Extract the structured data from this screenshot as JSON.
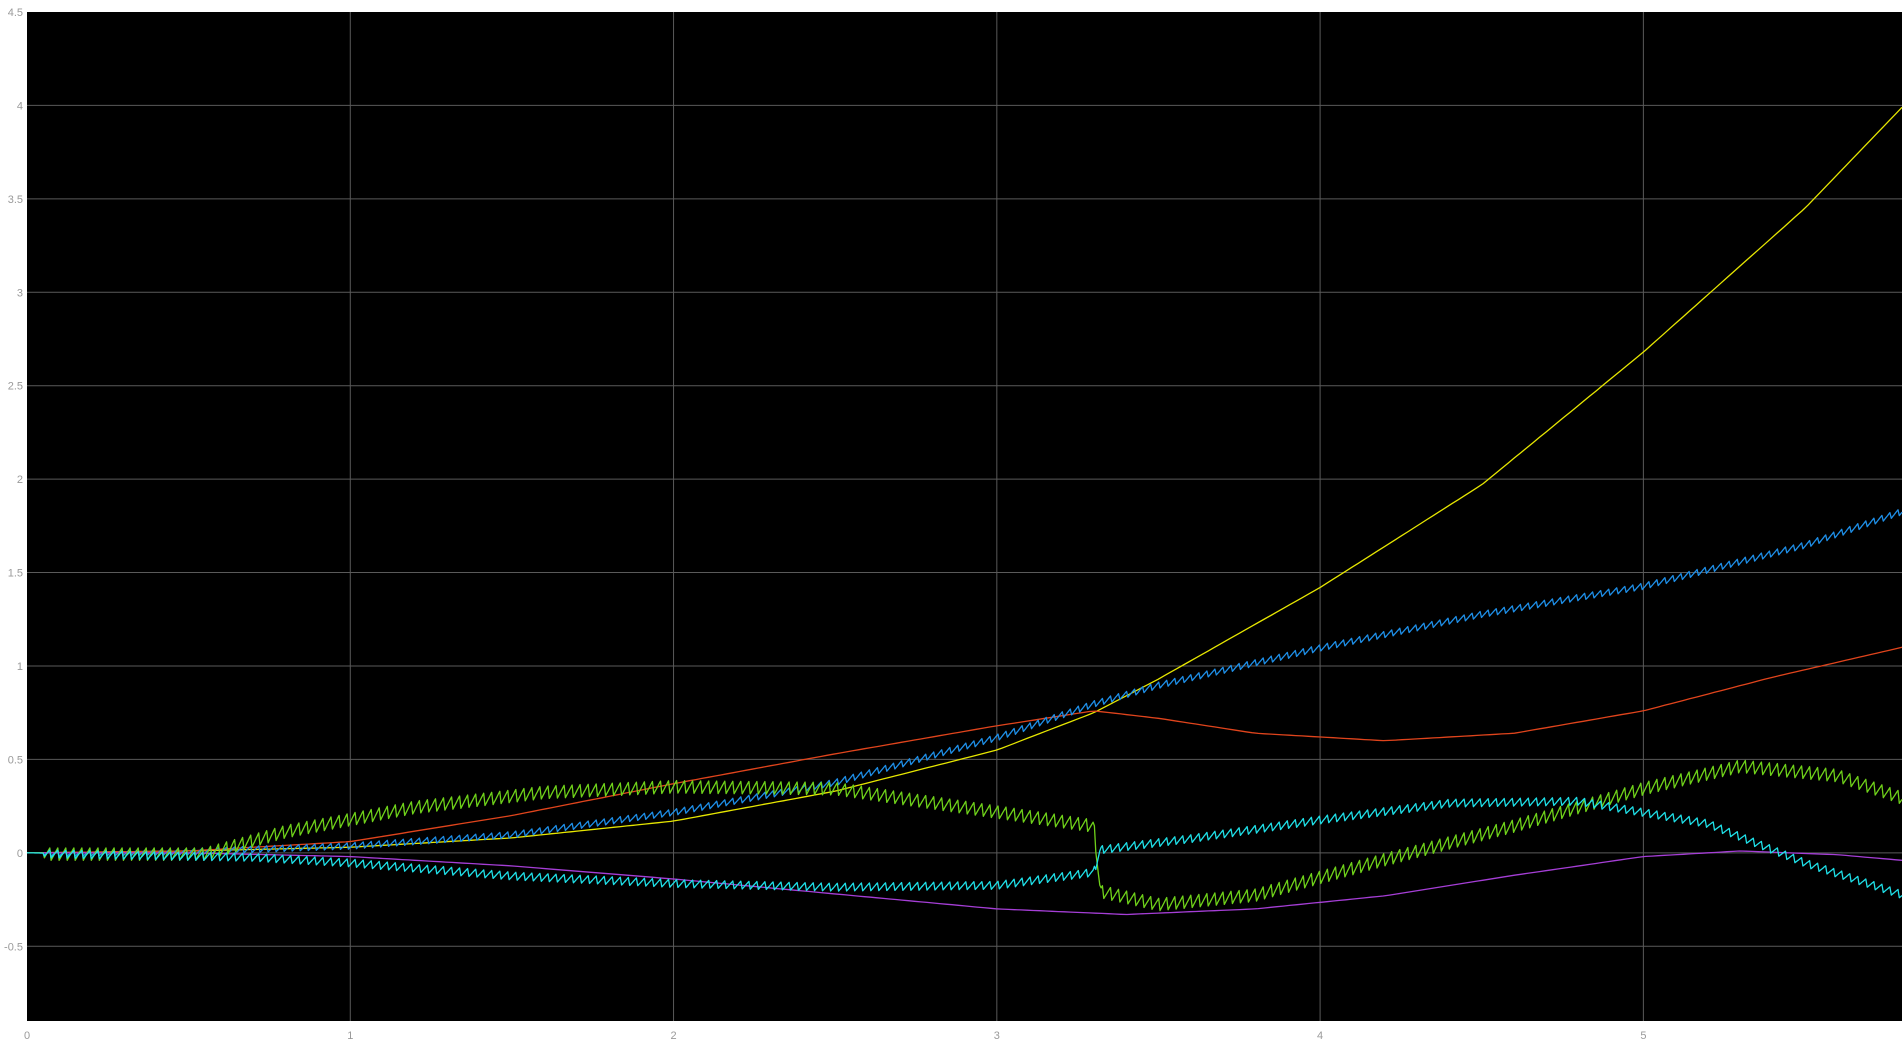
{
  "chart_data": {
    "type": "line",
    "title": "",
    "xlabel": "",
    "ylabel": "",
    "xlim": [
      0,
      5.8
    ],
    "ylim": [
      -0.9,
      4.5
    ],
    "grid": true,
    "legend": "none",
    "background": "#000000",
    "x_ticks": [
      "0",
      "1",
      "2",
      "3",
      "4",
      "5"
    ],
    "y_ticks": [
      "-0.5",
      "0",
      "0.5",
      "1",
      "1.5",
      "2",
      "2.5",
      "3",
      "3.5",
      "4",
      "4.5"
    ],
    "series": [
      {
        "color": "#e6e600",
        "noise": 0,
        "x": [
          0,
          0.5,
          1.0,
          1.5,
          2.0,
          2.5,
          3.0,
          3.3,
          3.5,
          4.0,
          4.5,
          5.0,
          5.5,
          5.8
        ],
        "y": [
          0,
          0.01,
          0.03,
          0.08,
          0.17,
          0.33,
          0.55,
          0.75,
          0.93,
          1.42,
          1.97,
          2.68,
          3.45,
          3.99
        ]
      },
      {
        "color": "#e0441c",
        "noise": 0,
        "x": [
          0,
          0.5,
          1.0,
          1.5,
          2.0,
          2.5,
          3.0,
          3.3,
          3.5,
          3.8,
          4.2,
          4.6,
          5.0,
          5.4,
          5.8
        ],
        "y": [
          0,
          0.01,
          0.06,
          0.2,
          0.37,
          0.53,
          0.68,
          0.76,
          0.72,
          0.64,
          0.6,
          0.64,
          0.76,
          0.94,
          1.1
        ]
      },
      {
        "color": "#1e8fe8",
        "noise": 0.02,
        "x": [
          0,
          0.5,
          1.0,
          1.5,
          2.0,
          2.5,
          3.0,
          3.3,
          3.5,
          4.0,
          4.5,
          5.0,
          5.5,
          5.8
        ],
        "y": [
          0,
          0.01,
          0.04,
          0.1,
          0.22,
          0.38,
          0.62,
          0.8,
          0.9,
          1.1,
          1.28,
          1.43,
          1.65,
          1.83
        ]
      },
      {
        "color": "#a53ed6",
        "noise": 0,
        "x": [
          0,
          0.5,
          1.0,
          1.5,
          2.0,
          2.5,
          3.0,
          3.4,
          3.8,
          4.2,
          4.6,
          5.0,
          5.3,
          5.6,
          5.8
        ],
        "y": [
          0,
          0,
          -0.02,
          -0.07,
          -0.14,
          -0.22,
          -0.3,
          -0.33,
          -0.3,
          -0.23,
          -0.12,
          -0.02,
          0.01,
          -0.01,
          -0.04
        ]
      },
      {
        "color": "#6fd21a",
        "noise": 0.04,
        "x": [
          0,
          0.55,
          0.8,
          1.2,
          1.6,
          2.0,
          2.5,
          2.9,
          3.3,
          3.32,
          3.5,
          3.8,
          4.2,
          4.6,
          5.0,
          5.3,
          5.6,
          5.8
        ],
        "y": [
          0,
          0,
          0.12,
          0.25,
          0.33,
          0.36,
          0.35,
          0.25,
          0.15,
          -0.2,
          -0.27,
          -0.22,
          -0.03,
          0.15,
          0.35,
          0.47,
          0.42,
          0.3
        ]
      },
      {
        "color": "#1fe0e8",
        "noise": 0.025,
        "x": [
          0,
          0.7,
          1.0,
          1.5,
          2.0,
          2.5,
          3.0,
          3.3,
          3.32,
          3.6,
          4.0,
          4.4,
          4.8,
          5.2,
          5.5,
          5.8
        ],
        "y": [
          0,
          -0.02,
          -0.05,
          -0.12,
          -0.16,
          -0.18,
          -0.17,
          -0.1,
          0.02,
          0.08,
          0.18,
          0.27,
          0.28,
          0.16,
          -0.05,
          -0.22
        ]
      }
    ]
  }
}
